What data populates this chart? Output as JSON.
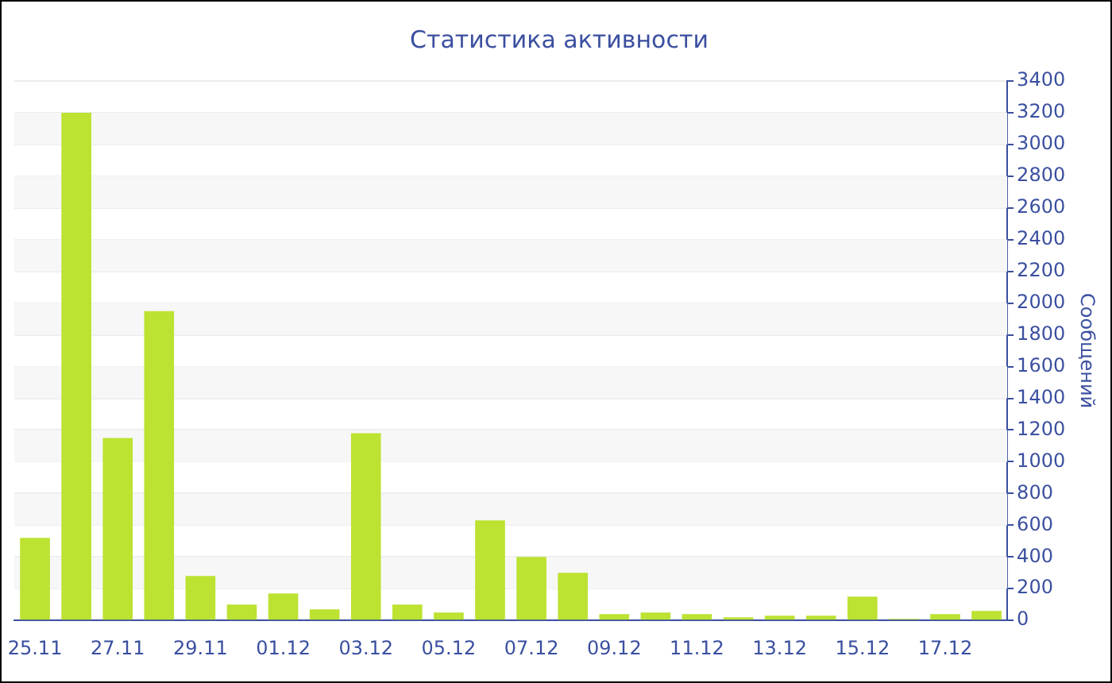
{
  "chart_data": {
    "type": "bar",
    "title": "Статистика активности",
    "ylabel": "Сообщений",
    "categories": [
      "25.11",
      null,
      "27.11",
      null,
      "29.11",
      null,
      "01.12",
      null,
      "03.12",
      null,
      "05.12",
      null,
      "07.12",
      null,
      "09.12",
      null,
      "11.12",
      null,
      "13.12",
      null,
      "15.12",
      null,
      "17.12",
      null
    ],
    "values": [
      520,
      3200,
      1150,
      1950,
      280,
      100,
      170,
      70,
      1180,
      100,
      50,
      630,
      400,
      300,
      40,
      50,
      40,
      20,
      30,
      30,
      150,
      10,
      40,
      60
    ],
    "color": "#bce232",
    "ylim": [
      0,
      3400
    ],
    "yticks": [
      0,
      200,
      400,
      600,
      800,
      1000,
      1200,
      1400,
      1600,
      1800,
      2000,
      2200,
      2400,
      2600,
      2800,
      3000,
      3200,
      3400
    ],
    "grid": "y",
    "legend": false
  }
}
